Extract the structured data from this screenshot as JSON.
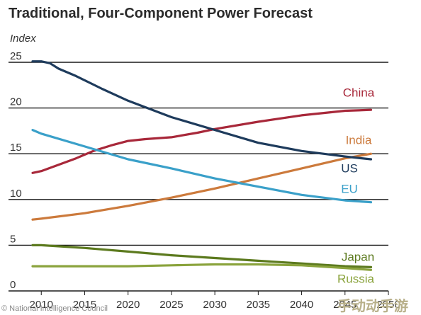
{
  "chart_data": {
    "type": "line",
    "title": "Traditional, Four-Component Power Forecast",
    "ylabel": "Index",
    "xlabel": "",
    "ylim": [
      0,
      25
    ],
    "xlim": [
      2009,
      2050
    ],
    "y_ticks": [
      "0",
      "5",
      "10",
      "15",
      "20",
      "25"
    ],
    "x_ticks": [
      "2010",
      "2015",
      "2020",
      "2025",
      "2030",
      "2035",
      "2040",
      "2045",
      "2050"
    ],
    "x_tick_values": [
      2010,
      2015,
      2020,
      2025,
      2030,
      2035,
      2040,
      2045,
      2050
    ],
    "grid": "horizontal",
    "series": [
      {
        "name": "China",
        "color": "#a8283a",
        "x": [
          2009,
          2010,
          2012,
          2014,
          2016,
          2018,
          2020,
          2022,
          2025,
          2028,
          2030,
          2035,
          2040,
          2045,
          2048
        ],
        "y": [
          12.9,
          13.1,
          13.8,
          14.5,
          15.3,
          15.9,
          16.4,
          16.6,
          16.8,
          17.3,
          17.7,
          18.5,
          19.2,
          19.7,
          19.8
        ]
      },
      {
        "name": "India",
        "color": "#cc7a3c",
        "x": [
          2009,
          2010,
          2015,
          2020,
          2025,
          2030,
          2035,
          2040,
          2045,
          2048
        ],
        "y": [
          7.8,
          7.9,
          8.5,
          9.3,
          10.2,
          11.2,
          12.3,
          13.4,
          14.5,
          15.0
        ]
      },
      {
        "name": "US",
        "color": "#1e3b5c",
        "x": [
          2009,
          2010,
          2011,
          2012,
          2014,
          2017,
          2020,
          2025,
          2030,
          2035,
          2040,
          2045,
          2048
        ],
        "y": [
          25.1,
          25.1,
          24.9,
          24.3,
          23.5,
          22.1,
          20.8,
          19.0,
          17.6,
          16.2,
          15.3,
          14.7,
          14.4
        ]
      },
      {
        "name": "EU",
        "color": "#3aa0c9",
        "x": [
          2009,
          2010,
          2015,
          2020,
          2025,
          2030,
          2035,
          2040,
          2045,
          2048
        ],
        "y": [
          17.6,
          17.2,
          15.8,
          14.4,
          13.4,
          12.3,
          11.4,
          10.5,
          9.9,
          9.7
        ]
      },
      {
        "name": "Japan",
        "color": "#5c7a1e",
        "x": [
          2009,
          2010,
          2015,
          2020,
          2025,
          2030,
          2035,
          2040,
          2045,
          2048
        ],
        "y": [
          5.0,
          5.0,
          4.7,
          4.3,
          3.9,
          3.6,
          3.3,
          3.0,
          2.7,
          2.6
        ]
      },
      {
        "name": "Russia",
        "color": "#8aa33c",
        "x": [
          2009,
          2010,
          2015,
          2020,
          2025,
          2030,
          2035,
          2040,
          2045,
          2048
        ],
        "y": [
          2.7,
          2.7,
          2.7,
          2.7,
          2.8,
          2.9,
          2.9,
          2.8,
          2.5,
          2.3
        ]
      }
    ]
  },
  "source": "© National Intelligence Council",
  "watermark": "手动动手游"
}
